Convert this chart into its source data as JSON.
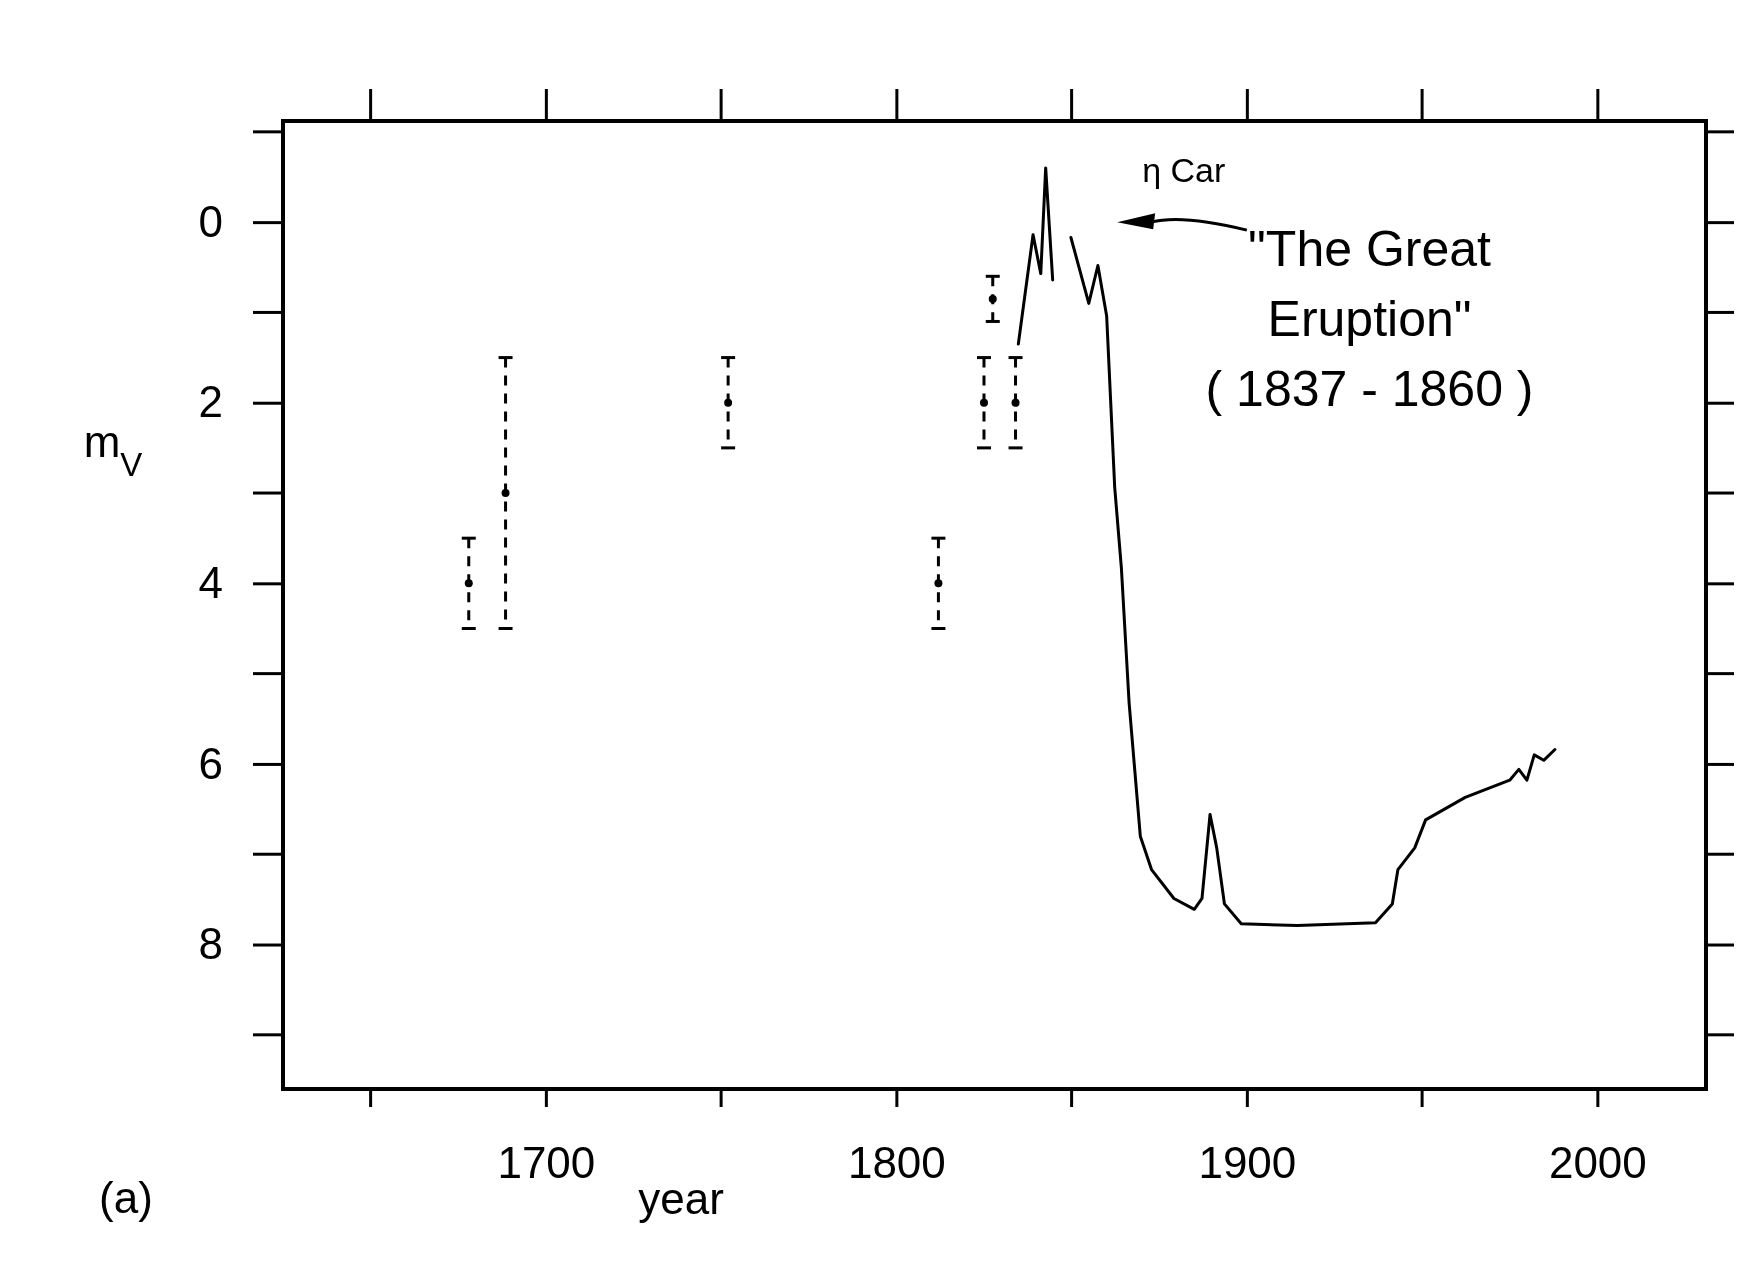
{
  "chart_data": {
    "type": "line",
    "xlabel": "year",
    "ylabel": "m$_{V}$",
    "xlim": [
      1625,
      2031
    ],
    "ylim": [
      9.6,
      -1.12
    ],
    "xticks": [
      1700,
      1800,
      1900,
      2000
    ],
    "yticks": [
      0,
      2,
      4,
      6,
      8
    ],
    "grid": false,
    "series": [
      {
        "color": "#000000",
        "line_style": "solid",
        "x": [
          1834.8,
          1839,
          1841.2,
          1842.6,
          1844.6
        ],
        "values": [
          1.35,
          0.14,
          0.57,
          -0.6,
          0.64
        ]
      },
      {
        "color": "#000000",
        "line_style": "solid",
        "x": [
          1849.8,
          1854.9,
          1857.5,
          1860,
          1862.3,
          1864.2,
          1866.4,
          1869.6,
          1872.8,
          1879.2,
          1885,
          1887.2,
          1889.5,
          1891.4,
          1893.6,
          1898.4,
          1914.4,
          1936.7,
          1941.5,
          1943.1,
          1947.9,
          1951,
          1962.3,
          1975,
          1977.6,
          1979.9,
          1982,
          1984.7,
          1987.9
        ],
        "values": [
          0.17,
          0.9,
          0.48,
          1.04,
          2.94,
          3.83,
          5.32,
          6.8,
          7.17,
          7.49,
          7.61,
          7.49,
          6.56,
          6.93,
          7.55,
          7.77,
          7.79,
          7.76,
          7.55,
          7.17,
          6.93,
          6.62,
          6.37,
          6.18,
          6.06,
          6.18,
          5.9,
          5.96,
          5.84
        ]
      },
      {
        "type": "scatter",
        "color": "#000000",
        "line_style": "dashed",
        "x": [
          1678,
          1688.5,
          1752,
          1812,
          1825,
          1827.5,
          1834
        ],
        "values": [
          4,
          3,
          2,
          4,
          2,
          0.85,
          2
        ],
        "errors": [
          [
            3.5,
            4.5
          ],
          [
            1.5,
            4.5
          ],
          [
            1.5,
            2.5
          ],
          [
            3.5,
            4.5
          ],
          [
            1.5,
            2.5
          ],
          [
            0.6,
            1.1
          ],
          [
            1.5,
            2.5
          ]
        ]
      }
    ],
    "annotations": [
      "η Car",
      "\"The Great\nEruption\"\n( 1837 - 1860 )",
      "(a)"
    ]
  }
}
